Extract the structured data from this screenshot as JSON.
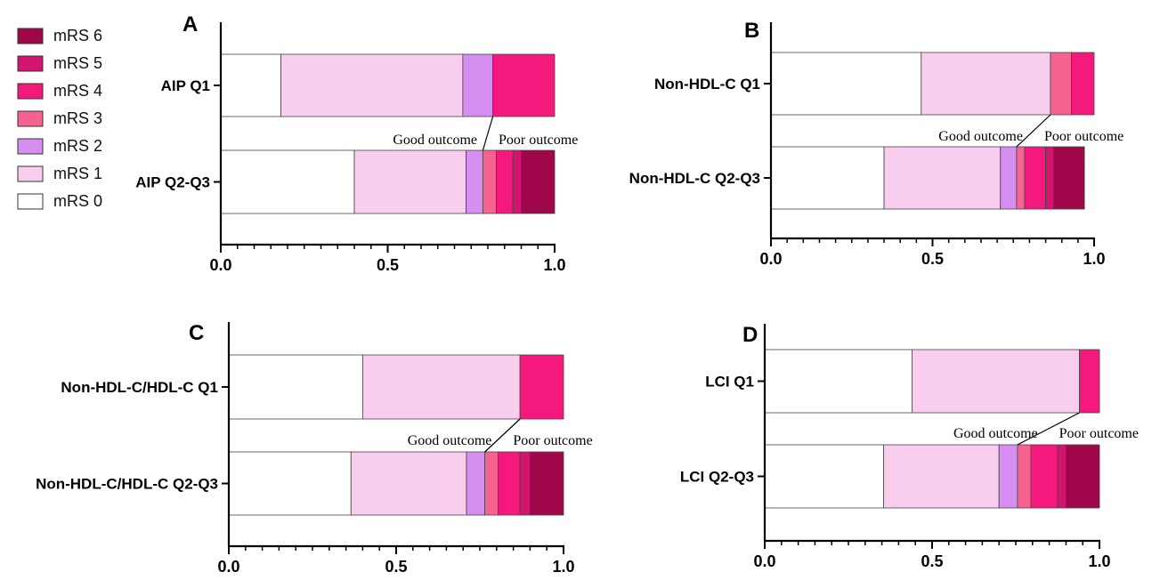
{
  "legend": {
    "items": [
      {
        "label": "mRS 6",
        "color": "#A0064A"
      },
      {
        "label": "mRS 5",
        "color": "#D1156F"
      },
      {
        "label": "mRS 4",
        "color": "#F5187D"
      },
      {
        "label": "mRS 3",
        "color": "#F56491"
      },
      {
        "label": "mRS 2",
        "color": "#D68FF0"
      },
      {
        "label": "mRS 1",
        "color": "#F8CDEE"
      },
      {
        "label": "mRS 0",
        "color": "#FFFFFF"
      }
    ]
  },
  "outcome_labels": {
    "good": "Good outcome",
    "poor": "Poor outcome"
  },
  "chart_data": [
    {
      "type": "bar",
      "orientation": "horizontal-stacked",
      "panel_label": "A",
      "categories": [
        "AIP Q1",
        "AIP Q2-Q3"
      ],
      "xlim": [
        0,
        1
      ],
      "xticks": [
        "0.0",
        "0.5",
        "1.0"
      ],
      "segments": [
        [
          0.18,
          0.545,
          0.09,
          0.0,
          0.185,
          0.0,
          0.0
        ],
        [
          0.4,
          0.335,
          0.05,
          0.04,
          0.05,
          0.025,
          0.1
        ]
      ]
    },
    {
      "type": "bar",
      "orientation": "horizontal-stacked",
      "panel_label": "B",
      "categories": [
        "Non-HDL-C Q1",
        "Non-HDL-C Q2-Q3"
      ],
      "xlim": [
        0,
        1
      ],
      "xticks": [
        "0.0",
        "0.5",
        "1.0"
      ],
      "segments": [
        [
          0.465,
          0.4,
          0.0,
          0.065,
          0.07,
          0.0,
          0.0
        ],
        [
          0.35,
          0.36,
          0.05,
          0.025,
          0.065,
          0.025,
          0.095
        ]
      ]
    },
    {
      "type": "bar",
      "orientation": "horizontal-stacked",
      "panel_label": "C",
      "categories": [
        "Non-HDL-C/HDL-C Q1",
        "Non-HDL-C/HDL-C Q2-Q3"
      ],
      "xlim": [
        0,
        1
      ],
      "xticks": [
        "0.0",
        "0.5",
        "1.0"
      ],
      "segments": [
        [
          0.4,
          0.47,
          0.0,
          0.0,
          0.13,
          0.0,
          0.0
        ],
        [
          0.365,
          0.345,
          0.055,
          0.04,
          0.065,
          0.03,
          0.1
        ]
      ]
    },
    {
      "type": "bar",
      "orientation": "horizontal-stacked",
      "panel_label": "D",
      "categories": [
        "LCI Q1",
        "LCI Q2-Q3"
      ],
      "xlim": [
        0,
        1
      ],
      "xticks": [
        "0.0",
        "0.5",
        "1.0"
      ],
      "segments": [
        [
          0.44,
          0.5,
          0.0,
          0.0,
          0.06,
          0.0,
          0.0
        ],
        [
          0.355,
          0.345,
          0.055,
          0.04,
          0.08,
          0.025,
          0.1
        ]
      ]
    }
  ]
}
